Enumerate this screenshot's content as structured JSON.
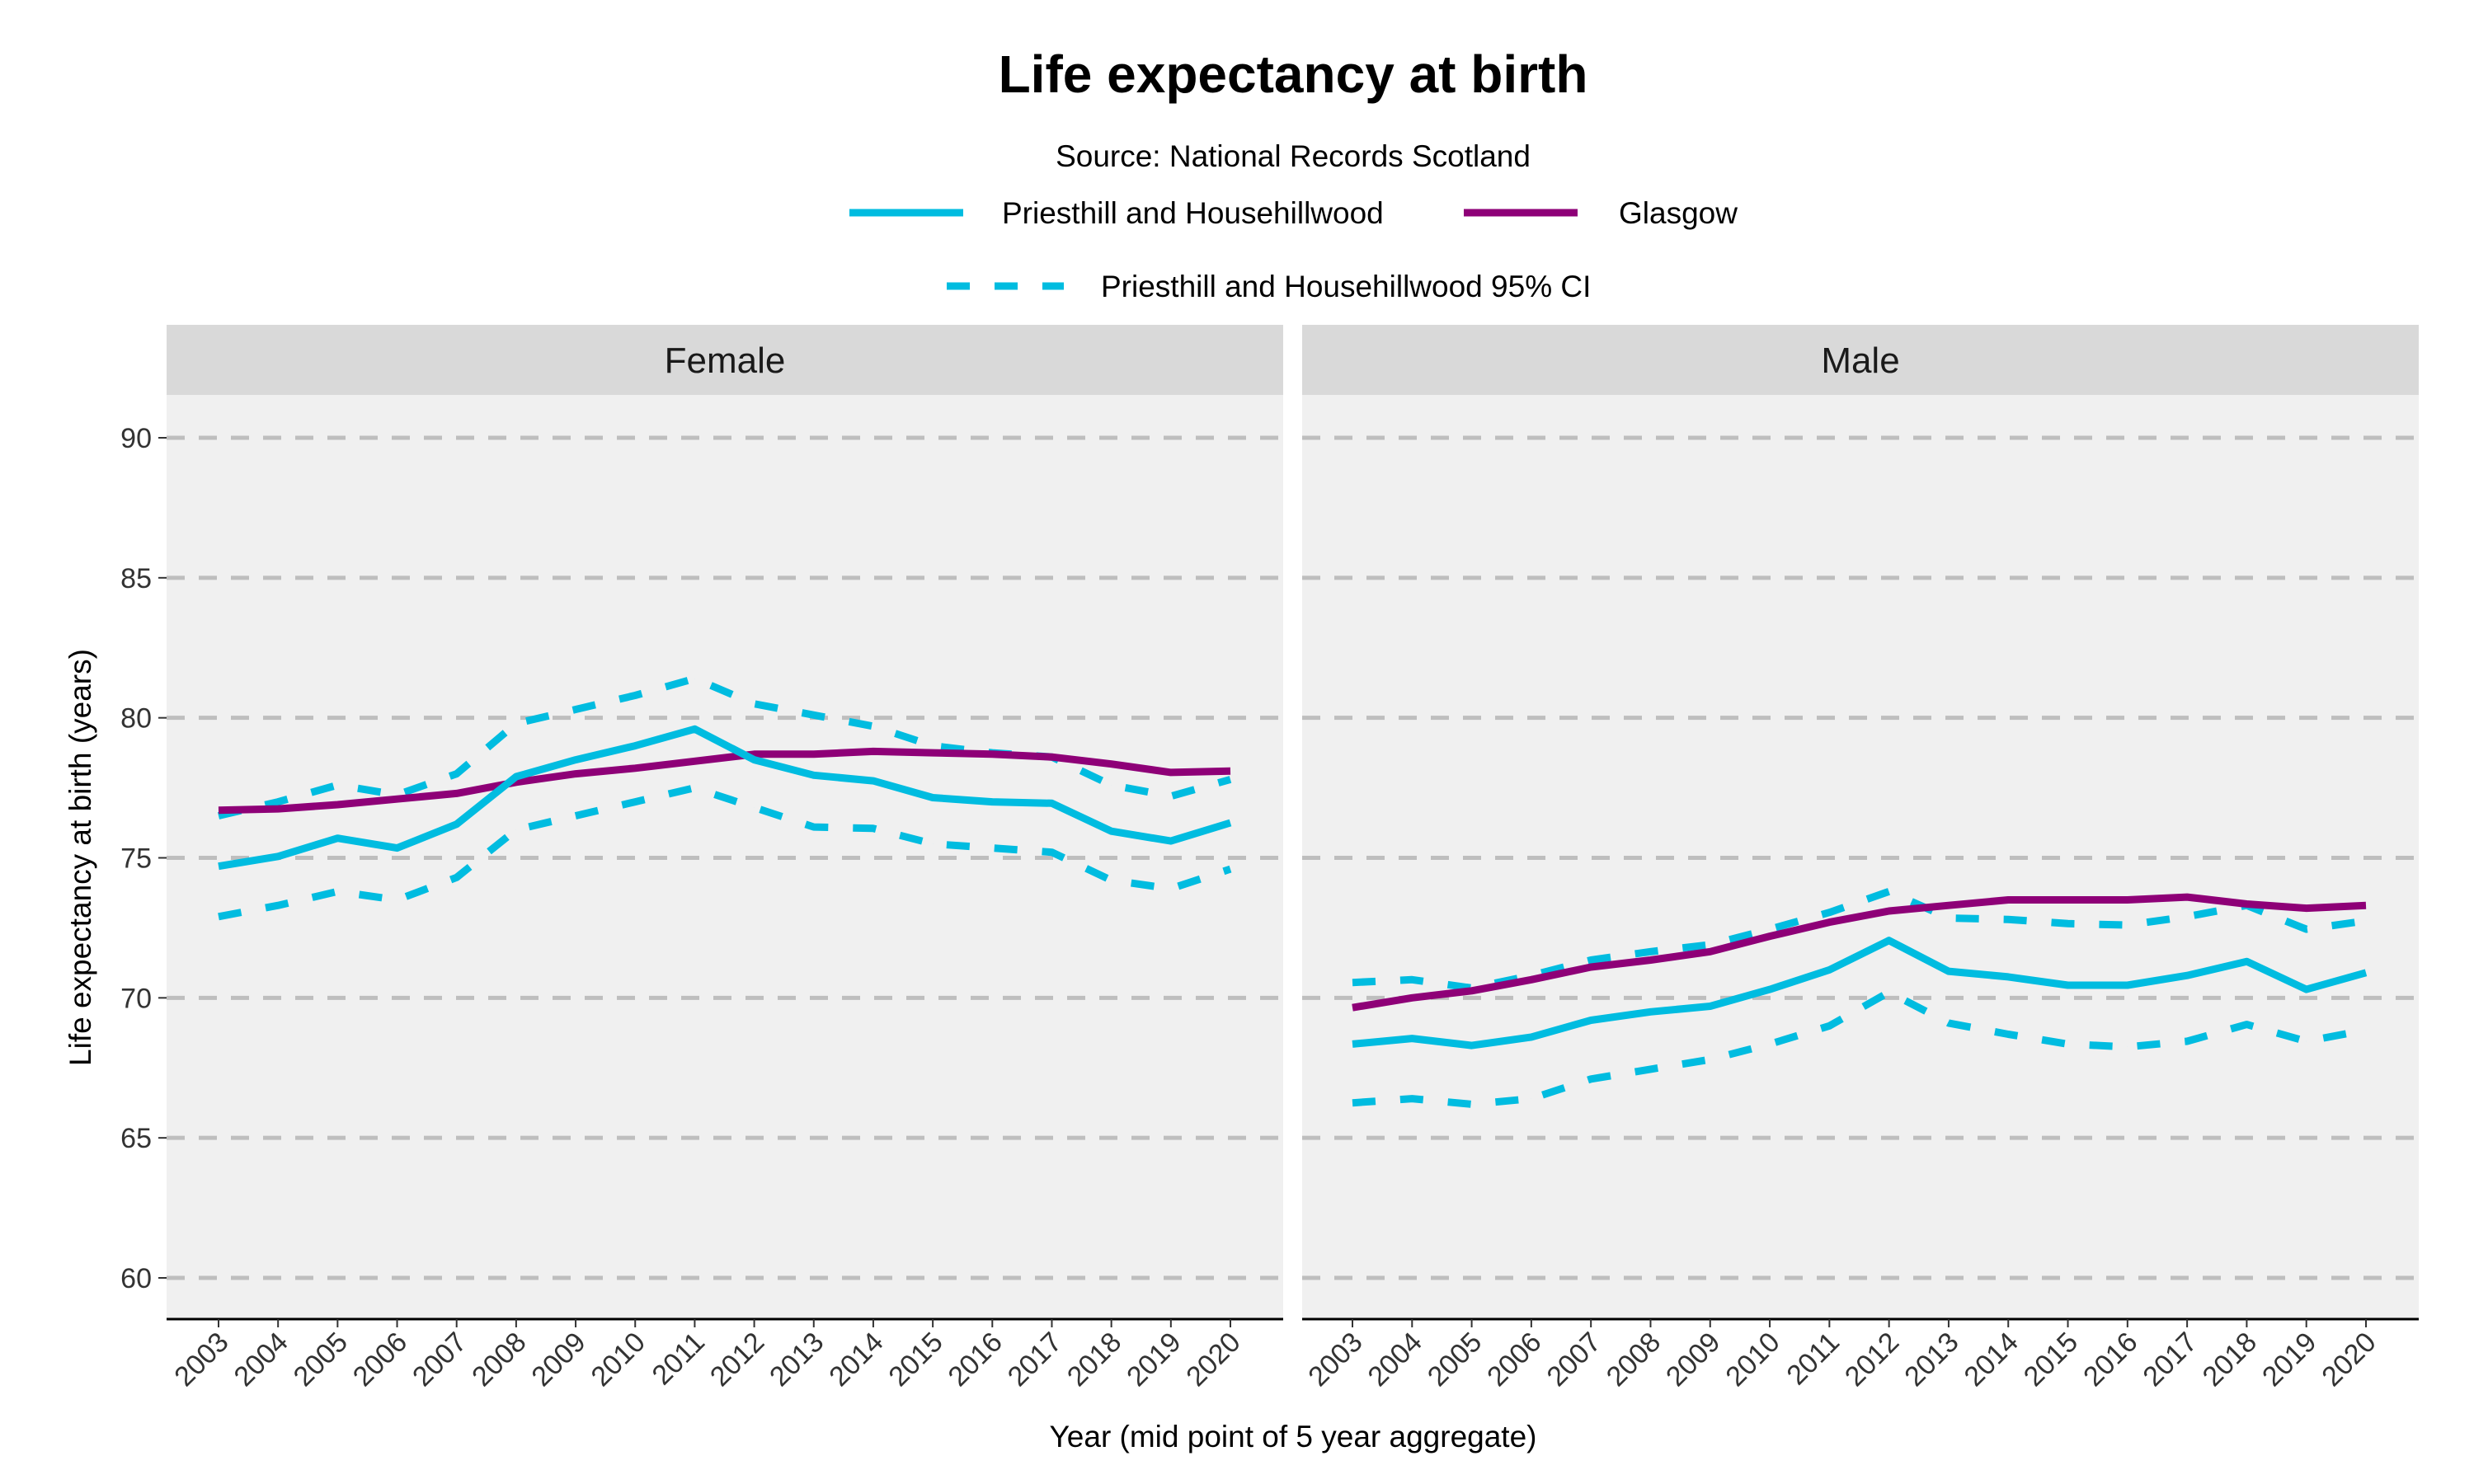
{
  "chart_data": {
    "type": "line",
    "title": "Life expectancy at birth",
    "subtitle": "Source: National Records Scotland",
    "xlabel": "Year (mid point of 5 year aggregate)",
    "ylabel": "Life expectancy at birth (years)",
    "ylim": [
      60,
      90
    ],
    "yticks": [
      "60",
      "65",
      "70",
      "75",
      "80",
      "85",
      "90"
    ],
    "grid": "horizontal dashed",
    "legend_position": "top",
    "legend": [
      {
        "name": "Priesthill and Househillwood",
        "style": "solid",
        "color": "#00BCE0"
      },
      {
        "name": "Glasgow",
        "style": "solid",
        "color": "#8E0077"
      },
      {
        "name": "Priesthill and Househillwood 95% CI",
        "style": "dashed",
        "color": "#00BCE0"
      }
    ],
    "x": [
      "2003",
      "2004",
      "2005",
      "2006",
      "2007",
      "2008",
      "2009",
      "2010",
      "2011",
      "2012",
      "2013",
      "2014",
      "2015",
      "2016",
      "2017",
      "2018",
      "2019",
      "2020"
    ],
    "panels": [
      {
        "label": "Female",
        "series": [
          {
            "name": "Priesthill and Househillwood",
            "values": [
              74.7,
              75.05,
              75.7,
              75.35,
              76.2,
              77.9,
              78.5,
              79.0,
              79.6,
              78.5,
              77.95,
              77.75,
              77.15,
              77.0,
              76.95,
              75.95,
              75.6,
              76.25
            ]
          },
          {
            "name": "Glasgow",
            "values": [
              76.7,
              76.75,
              76.9,
              77.1,
              77.3,
              77.7,
              78.0,
              78.2,
              78.45,
              78.7,
              78.7,
              78.8,
              78.75,
              78.7,
              78.6,
              78.35,
              78.05,
              78.1
            ]
          },
          {
            "name": "Priesthill and Househillwood 95% CI upper",
            "values": [
              76.5,
              77.0,
              77.6,
              77.25,
              78.0,
              79.8,
              80.3,
              80.8,
              81.4,
              80.5,
              80.1,
              79.7,
              79.0,
              78.75,
              78.6,
              77.6,
              77.2,
              77.8
            ]
          },
          {
            "name": "Priesthill and Househillwood 95% CI lower",
            "values": [
              72.9,
              73.3,
              73.8,
              73.5,
              74.3,
              76.0,
              76.5,
              77.0,
              77.5,
              76.8,
              76.1,
              76.05,
              75.5,
              75.35,
              75.2,
              74.2,
              73.9,
              74.6
            ]
          }
        ]
      },
      {
        "label": "Male",
        "series": [
          {
            "name": "Priesthill and Househillwood",
            "values": [
              68.35,
              68.55,
              68.3,
              68.6,
              69.2,
              69.5,
              69.7,
              70.3,
              71.0,
              72.05,
              70.95,
              70.75,
              70.45,
              70.45,
              70.8,
              71.3,
              70.3,
              70.9
            ]
          },
          {
            "name": "Glasgow",
            "values": [
              69.65,
              70.0,
              70.25,
              70.65,
              71.1,
              71.35,
              71.65,
              72.2,
              72.7,
              73.1,
              73.3,
              73.5,
              73.5,
              73.5,
              73.6,
              73.35,
              73.2,
              73.3
            ]
          },
          {
            "name": "Priesthill and Househillwood 95% CI upper",
            "values": [
              70.55,
              70.65,
              70.35,
              70.8,
              71.35,
              71.65,
              71.9,
              72.45,
              73.05,
              73.8,
              72.85,
              72.8,
              72.65,
              72.6,
              72.9,
              73.3,
              72.45,
              72.75
            ]
          },
          {
            "name": "Priesthill and Househillwood 95% CI lower",
            "values": [
              66.25,
              66.4,
              66.2,
              66.4,
              67.1,
              67.45,
              67.8,
              68.35,
              69.0,
              70.2,
              69.1,
              68.7,
              68.35,
              68.25,
              68.45,
              69.05,
              68.45,
              68.85
            ]
          }
        ]
      }
    ],
    "colors": {
      "area": "#00BCE0",
      "glasgow": "#8E0077",
      "panel_bg": "#F0F0F0",
      "strip_bg": "#D9D9D9",
      "grid": "#BEBEBE"
    }
  }
}
